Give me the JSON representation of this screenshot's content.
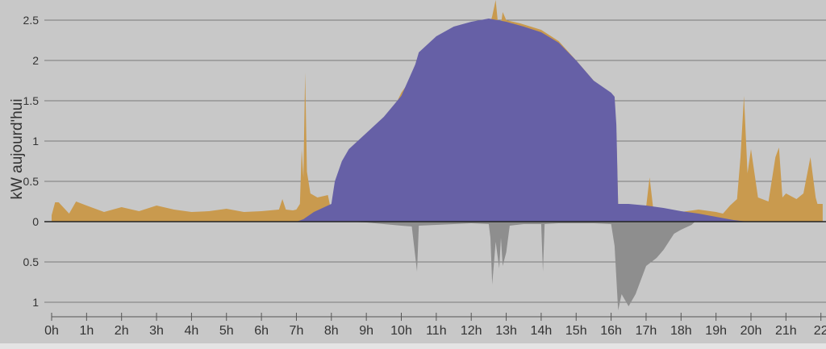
{
  "chart_data": {
    "type": "area",
    "ylabel": "kW aujourd'hui",
    "x_unit": "hour",
    "xlim": [
      0,
      22.05
    ],
    "upper_ylim": [
      0,
      2.5
    ],
    "lower_ylim": [
      0,
      1
    ],
    "y_ticks_upper": [
      "2.5",
      "2",
      "1.5",
      "1",
      "0.5",
      "0"
    ],
    "y_ticks_lower": [
      "0.5",
      "1"
    ],
    "x_ticks": [
      "0h",
      "1h",
      "2h",
      "3h",
      "4h",
      "5h",
      "6h",
      "7h",
      "8h",
      "9h",
      "10h",
      "11h",
      "12h",
      "13h",
      "14h",
      "15h",
      "16h",
      "17h",
      "18h",
      "19h",
      "20h",
      "21h",
      "22"
    ],
    "grid": true,
    "colors": {
      "background": "#c8c8c8",
      "consumption": "#c99a4e",
      "production": "#6660a6",
      "export": "#8e8e8e",
      "grid": "#7a7a7a",
      "baseline": "#222222"
    },
    "series": [
      {
        "key": "consumption",
        "role": "grid consumption (above zero)",
        "x": [
          0,
          0.1,
          0.2,
          0.5,
          0.7,
          1.0,
          1.5,
          2.0,
          2.5,
          3.0,
          3.5,
          4.0,
          4.5,
          5.0,
          5.5,
          6.0,
          6.5,
          6.6,
          6.7,
          6.9,
          7.0,
          7.1,
          7.15,
          7.2,
          7.25,
          7.3,
          7.4,
          7.6,
          7.9,
          8.0,
          8.2,
          8.5,
          9.0,
          10.0,
          11.0,
          12.0,
          12.4,
          12.5,
          12.6,
          12.7,
          12.8,
          12.9,
          13.0,
          13.4,
          14.0,
          14.5,
          15.0,
          15.5,
          16.0,
          16.1,
          16.15,
          16.2,
          16.3,
          16.5,
          17.0,
          17.1,
          17.2,
          17.5,
          18.0,
          18.5,
          19.0,
          19.2,
          19.4,
          19.6,
          19.7,
          19.8,
          19.9,
          20.0,
          20.2,
          20.5,
          20.7,
          20.8,
          20.9,
          21.0,
          21.3,
          21.5,
          21.7,
          21.85,
          21.9,
          22.05
        ],
        "values": [
          0.08,
          0.24,
          0.24,
          0.1,
          0.25,
          0.2,
          0.12,
          0.18,
          0.13,
          0.2,
          0.15,
          0.12,
          0.13,
          0.16,
          0.12,
          0.13,
          0.15,
          0.28,
          0.15,
          0.14,
          0.15,
          0.22,
          0.9,
          0.55,
          1.85,
          0.62,
          0.35,
          0.3,
          0.33,
          0.12,
          0.1,
          0.1,
          0.7,
          1.6,
          2.2,
          2.46,
          2.5,
          2.4,
          2.55,
          2.75,
          2.3,
          2.6,
          2.5,
          2.46,
          2.38,
          2.24,
          2.0,
          1.75,
          1.55,
          1.45,
          1.1,
          0.22,
          0.2,
          0.2,
          0.18,
          0.55,
          0.18,
          0.15,
          0.12,
          0.15,
          0.12,
          0.1,
          0.2,
          0.28,
          0.8,
          1.56,
          0.6,
          0.9,
          0.3,
          0.25,
          0.8,
          0.92,
          0.3,
          0.35,
          0.28,
          0.35,
          0.8,
          0.3,
          0.22,
          0.22
        ]
      },
      {
        "key": "production",
        "role": "solar production (above zero)",
        "x": [
          7.0,
          7.2,
          7.5,
          7.8,
          8.0,
          8.1,
          8.3,
          8.5,
          9.0,
          9.5,
          10.0,
          10.4,
          10.5,
          11.0,
          11.5,
          12.0,
          12.5,
          13.0,
          13.5,
          14.0,
          14.5,
          15.0,
          15.5,
          16.0,
          16.1,
          16.15,
          16.2,
          16.5,
          17.0,
          17.5,
          18.0,
          18.5,
          19.0,
          19.5,
          19.9
        ],
        "values": [
          0,
          0.03,
          0.12,
          0.18,
          0.22,
          0.5,
          0.75,
          0.9,
          1.1,
          1.3,
          1.56,
          1.95,
          2.1,
          2.3,
          2.42,
          2.48,
          2.52,
          2.48,
          2.42,
          2.35,
          2.22,
          2.0,
          1.75,
          1.6,
          1.55,
          1.2,
          0.22,
          0.22,
          0.2,
          0.17,
          0.13,
          0.1,
          0.06,
          0.02,
          0
        ]
      },
      {
        "key": "export",
        "role": "grid injection (below zero)",
        "x": [
          8.5,
          9.0,
          9.5,
          10.0,
          10.3,
          10.45,
          10.5,
          11.0,
          12.0,
          12.5,
          12.55,
          12.6,
          12.7,
          12.8,
          12.85,
          12.9,
          13.0,
          13.1,
          13.5,
          14.0,
          14.05,
          14.1,
          14.5,
          15.0,
          15.5,
          16.0,
          16.1,
          16.2,
          16.3,
          16.5,
          16.7,
          17.0,
          17.3,
          17.5,
          17.8,
          18.0,
          18.3,
          18.4
        ],
        "values": [
          0,
          0.01,
          0.03,
          0.05,
          0.06,
          0.62,
          0.05,
          0.04,
          0.02,
          0.03,
          0.2,
          0.78,
          0.25,
          0.58,
          0.2,
          0.55,
          0.38,
          0.05,
          0.03,
          0.03,
          0.62,
          0.03,
          0.02,
          0.02,
          0.02,
          0.03,
          0.3,
          1.1,
          0.9,
          1.05,
          0.9,
          0.55,
          0.45,
          0.35,
          0.15,
          0.1,
          0.04,
          0
        ]
      }
    ]
  }
}
